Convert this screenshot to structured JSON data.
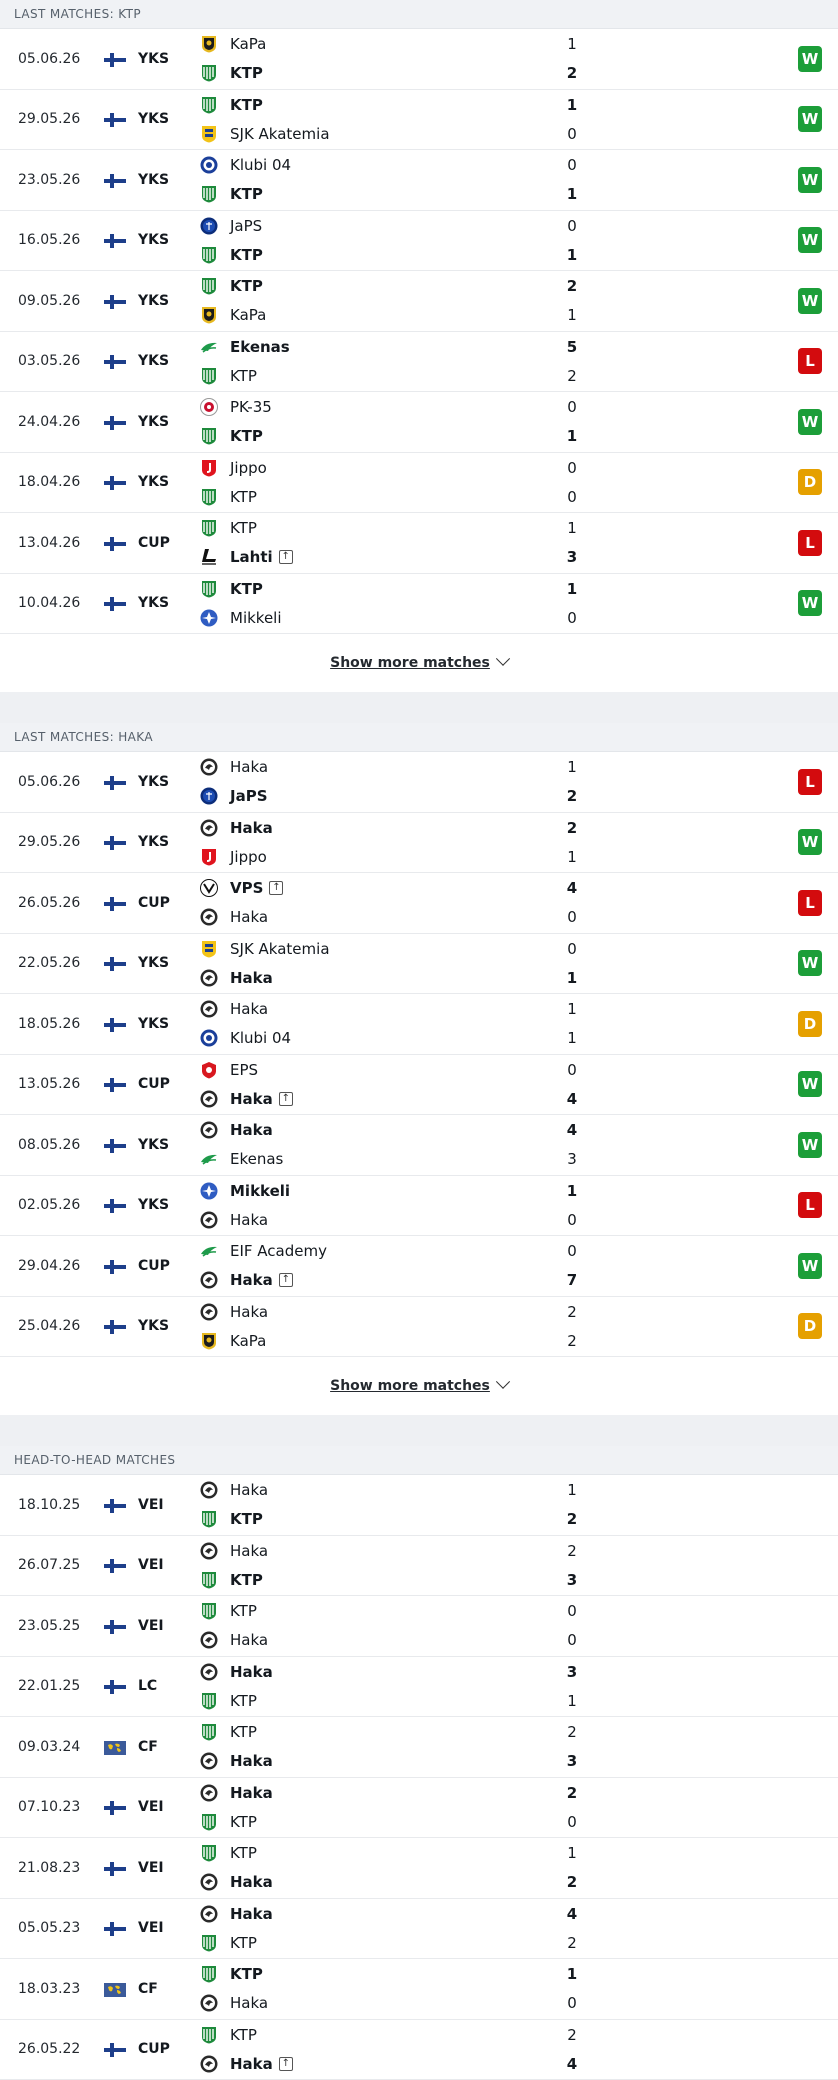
{
  "colors": {
    "win": "#1c9e39",
    "loss": "#d30b0e",
    "draw": "#e5a000"
  },
  "show_more_label": "Show more matches",
  "sections": [
    {
      "title": "LAST MATCHES: KTP",
      "show_more": true,
      "matches": [
        {
          "date": "05.06.26",
          "flag": "fi",
          "comp": "YKS",
          "home": {
            "name": "KaPa",
            "logo": "kapa",
            "bold": false,
            "up": false
          },
          "away": {
            "name": "KTP",
            "logo": "ktp",
            "bold": true,
            "up": false
          },
          "hs": "1",
          "as": "2",
          "result": "W"
        },
        {
          "date": "29.05.26",
          "flag": "fi",
          "comp": "YKS",
          "home": {
            "name": "KTP",
            "logo": "ktp",
            "bold": true,
            "up": false
          },
          "away": {
            "name": "SJK Akatemia",
            "logo": "sjk",
            "bold": false,
            "up": false
          },
          "hs": "1",
          "as": "0",
          "result": "W"
        },
        {
          "date": "23.05.26",
          "flag": "fi",
          "comp": "YKS",
          "home": {
            "name": "Klubi 04",
            "logo": "klubi",
            "bold": false,
            "up": false
          },
          "away": {
            "name": "KTP",
            "logo": "ktp",
            "bold": true,
            "up": false
          },
          "hs": "0",
          "as": "1",
          "result": "W"
        },
        {
          "date": "16.05.26",
          "flag": "fi",
          "comp": "YKS",
          "home": {
            "name": "JaPS",
            "logo": "japs",
            "bold": false,
            "up": false
          },
          "away": {
            "name": "KTP",
            "logo": "ktp",
            "bold": true,
            "up": false
          },
          "hs": "0",
          "as": "1",
          "result": "W"
        },
        {
          "date": "09.05.26",
          "flag": "fi",
          "comp": "YKS",
          "home": {
            "name": "KTP",
            "logo": "ktp",
            "bold": true,
            "up": false
          },
          "away": {
            "name": "KaPa",
            "logo": "kapa",
            "bold": false,
            "up": false
          },
          "hs": "2",
          "as": "1",
          "result": "W"
        },
        {
          "date": "03.05.26",
          "flag": "fi",
          "comp": "YKS",
          "home": {
            "name": "Ekenas",
            "logo": "ekenas",
            "bold": true,
            "up": false
          },
          "away": {
            "name": "KTP",
            "logo": "ktp",
            "bold": false,
            "up": false
          },
          "hs": "5",
          "as": "2",
          "result": "L"
        },
        {
          "date": "24.04.26",
          "flag": "fi",
          "comp": "YKS",
          "home": {
            "name": "PK-35",
            "logo": "pk35",
            "bold": false,
            "up": false
          },
          "away": {
            "name": "KTP",
            "logo": "ktp",
            "bold": true,
            "up": false
          },
          "hs": "0",
          "as": "1",
          "result": "W"
        },
        {
          "date": "18.04.26",
          "flag": "fi",
          "comp": "YKS",
          "home": {
            "name": "Jippo",
            "logo": "jippo",
            "bold": false,
            "up": false
          },
          "away": {
            "name": "KTP",
            "logo": "ktp",
            "bold": false,
            "up": false
          },
          "hs": "0",
          "as": "0",
          "result": "D"
        },
        {
          "date": "13.04.26",
          "flag": "fi",
          "comp": "CUP",
          "home": {
            "name": "KTP",
            "logo": "ktp",
            "bold": false,
            "up": false
          },
          "away": {
            "name": "Lahti",
            "logo": "lahti",
            "bold": true,
            "up": true
          },
          "hs": "1",
          "as": "3",
          "result": "L"
        },
        {
          "date": "10.04.26",
          "flag": "fi",
          "comp": "YKS",
          "home": {
            "name": "KTP",
            "logo": "ktp",
            "bold": true,
            "up": false
          },
          "away": {
            "name": "Mikkeli",
            "logo": "mikkeli",
            "bold": false,
            "up": false
          },
          "hs": "1",
          "as": "0",
          "result": "W"
        }
      ]
    },
    {
      "title": "LAST MATCHES: HAKA",
      "show_more": true,
      "matches": [
        {
          "date": "05.06.26",
          "flag": "fi",
          "comp": "YKS",
          "home": {
            "name": "Haka",
            "logo": "haka",
            "bold": false,
            "up": false
          },
          "away": {
            "name": "JaPS",
            "logo": "japs",
            "bold": true,
            "up": false
          },
          "hs": "1",
          "as": "2",
          "result": "L"
        },
        {
          "date": "29.05.26",
          "flag": "fi",
          "comp": "YKS",
          "home": {
            "name": "Haka",
            "logo": "haka",
            "bold": true,
            "up": false
          },
          "away": {
            "name": "Jippo",
            "logo": "jippo",
            "bold": false,
            "up": false
          },
          "hs": "2",
          "as": "1",
          "result": "W"
        },
        {
          "date": "26.05.26",
          "flag": "fi",
          "comp": "CUP",
          "home": {
            "name": "VPS",
            "logo": "vps",
            "bold": true,
            "up": true
          },
          "away": {
            "name": "Haka",
            "logo": "haka",
            "bold": false,
            "up": false
          },
          "hs": "4",
          "as": "0",
          "result": "L"
        },
        {
          "date": "22.05.26",
          "flag": "fi",
          "comp": "YKS",
          "home": {
            "name": "SJK Akatemia",
            "logo": "sjk",
            "bold": false,
            "up": false
          },
          "away": {
            "name": "Haka",
            "logo": "haka",
            "bold": true,
            "up": false
          },
          "hs": "0",
          "as": "1",
          "result": "W"
        },
        {
          "date": "18.05.26",
          "flag": "fi",
          "comp": "YKS",
          "home": {
            "name": "Haka",
            "logo": "haka",
            "bold": false,
            "up": false
          },
          "away": {
            "name": "Klubi 04",
            "logo": "klubi",
            "bold": false,
            "up": false
          },
          "hs": "1",
          "as": "1",
          "result": "D"
        },
        {
          "date": "13.05.26",
          "flag": "fi",
          "comp": "CUP",
          "home": {
            "name": "EPS",
            "logo": "eps",
            "bold": false,
            "up": false
          },
          "away": {
            "name": "Haka",
            "logo": "haka",
            "bold": true,
            "up": true
          },
          "hs": "0",
          "as": "4",
          "result": "W"
        },
        {
          "date": "08.05.26",
          "flag": "fi",
          "comp": "YKS",
          "home": {
            "name": "Haka",
            "logo": "haka",
            "bold": true,
            "up": false
          },
          "away": {
            "name": "Ekenas",
            "logo": "ekenas",
            "bold": false,
            "up": false
          },
          "hs": "4",
          "as": "3",
          "result": "W"
        },
        {
          "date": "02.05.26",
          "flag": "fi",
          "comp": "YKS",
          "home": {
            "name": "Mikkeli",
            "logo": "mikkeli",
            "bold": true,
            "up": false
          },
          "away": {
            "name": "Haka",
            "logo": "haka",
            "bold": false,
            "up": false
          },
          "hs": "1",
          "as": "0",
          "result": "L"
        },
        {
          "date": "29.04.26",
          "flag": "fi",
          "comp": "CUP",
          "home": {
            "name": "EIF Academy",
            "logo": "ekenas",
            "bold": false,
            "up": false
          },
          "away": {
            "name": "Haka",
            "logo": "haka",
            "bold": true,
            "up": true
          },
          "hs": "0",
          "as": "7",
          "result": "W"
        },
        {
          "date": "25.04.26",
          "flag": "fi",
          "comp": "YKS",
          "home": {
            "name": "Haka",
            "logo": "haka",
            "bold": false,
            "up": false
          },
          "away": {
            "name": "KaPa",
            "logo": "kapa",
            "bold": false,
            "up": false
          },
          "hs": "2",
          "as": "2",
          "result": "D"
        }
      ]
    },
    {
      "title": "HEAD-TO-HEAD MATCHES",
      "show_more": false,
      "matches": [
        {
          "date": "18.10.25",
          "flag": "fi",
          "comp": "VEI",
          "home": {
            "name": "Haka",
            "logo": "haka",
            "bold": false,
            "up": false
          },
          "away": {
            "name": "KTP",
            "logo": "ktp",
            "bold": true,
            "up": false
          },
          "hs": "1",
          "as": "2",
          "result": ""
        },
        {
          "date": "26.07.25",
          "flag": "fi",
          "comp": "VEI",
          "home": {
            "name": "Haka",
            "logo": "haka",
            "bold": false,
            "up": false
          },
          "away": {
            "name": "KTP",
            "logo": "ktp",
            "bold": true,
            "up": false
          },
          "hs": "2",
          "as": "3",
          "result": ""
        },
        {
          "date": "23.05.25",
          "flag": "fi",
          "comp": "VEI",
          "home": {
            "name": "KTP",
            "logo": "ktp",
            "bold": false,
            "up": false
          },
          "away": {
            "name": "Haka",
            "logo": "haka",
            "bold": false,
            "up": false
          },
          "hs": "0",
          "as": "0",
          "result": ""
        },
        {
          "date": "22.01.25",
          "flag": "fi",
          "comp": "LC",
          "home": {
            "name": "Haka",
            "logo": "haka",
            "bold": true,
            "up": false
          },
          "away": {
            "name": "KTP",
            "logo": "ktp",
            "bold": false,
            "up": false
          },
          "hs": "3",
          "as": "1",
          "result": ""
        },
        {
          "date": "09.03.24",
          "flag": "world",
          "comp": "CF",
          "home": {
            "name": "KTP",
            "logo": "ktp",
            "bold": false,
            "up": false
          },
          "away": {
            "name": "Haka",
            "logo": "haka",
            "bold": true,
            "up": false
          },
          "hs": "2",
          "as": "3",
          "result": ""
        },
        {
          "date": "07.10.23",
          "flag": "fi",
          "comp": "VEI",
          "home": {
            "name": "Haka",
            "logo": "haka",
            "bold": true,
            "up": false
          },
          "away": {
            "name": "KTP",
            "logo": "ktp",
            "bold": false,
            "up": false
          },
          "hs": "2",
          "as": "0",
          "result": ""
        },
        {
          "date": "21.08.23",
          "flag": "fi",
          "comp": "VEI",
          "home": {
            "name": "KTP",
            "logo": "ktp",
            "bold": false,
            "up": false
          },
          "away": {
            "name": "Haka",
            "logo": "haka",
            "bold": true,
            "up": false
          },
          "hs": "1",
          "as": "2",
          "result": ""
        },
        {
          "date": "05.05.23",
          "flag": "fi",
          "comp": "VEI",
          "home": {
            "name": "Haka",
            "logo": "haka",
            "bold": true,
            "up": false
          },
          "away": {
            "name": "KTP",
            "logo": "ktp",
            "bold": false,
            "up": false
          },
          "hs": "4",
          "as": "2",
          "result": ""
        },
        {
          "date": "18.03.23",
          "flag": "world",
          "comp": "CF",
          "home": {
            "name": "KTP",
            "logo": "ktp",
            "bold": true,
            "up": false
          },
          "away": {
            "name": "Haka",
            "logo": "haka",
            "bold": false,
            "up": false
          },
          "hs": "1",
          "as": "0",
          "result": ""
        },
        {
          "date": "26.05.22",
          "flag": "fi",
          "comp": "CUP",
          "home": {
            "name": "KTP",
            "logo": "ktp",
            "bold": false,
            "up": false
          },
          "away": {
            "name": "Haka",
            "logo": "haka",
            "bold": true,
            "up": true
          },
          "hs": "2",
          "as": "4",
          "result": ""
        }
      ]
    }
  ]
}
